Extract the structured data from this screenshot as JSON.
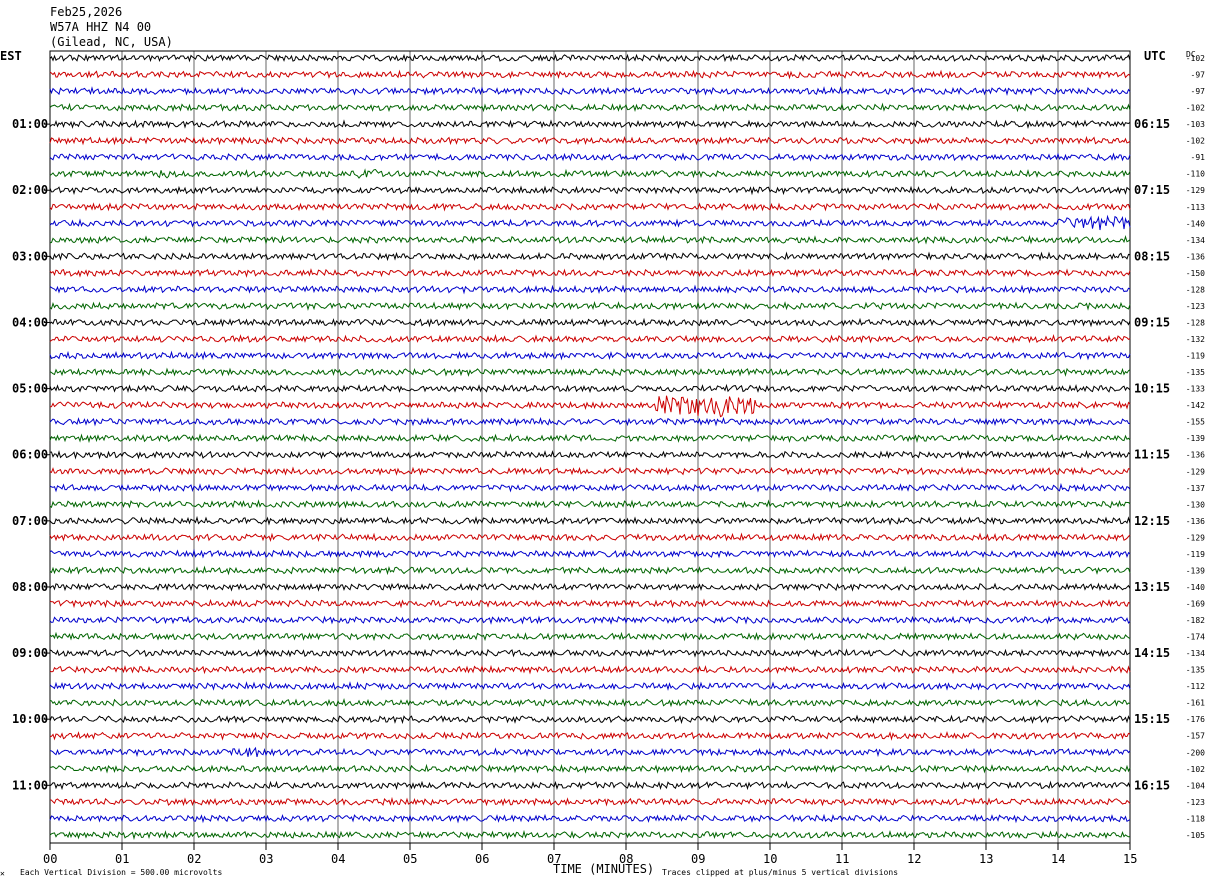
{
  "header": {
    "date": "Feb25,2026",
    "station": "W57A HHZ N4 00",
    "location": "(Gilead, NC, USA)"
  },
  "left_zone": "EST",
  "right_zone": "UTC",
  "dc_label": "DC",
  "footer": {
    "scale": "Each Vertical Division =  500.00 microvolts",
    "clip": "Traces clipped at plus/minus 5 vertical divisions"
  },
  "colors": {
    "trace_cycle": [
      "#000000",
      "#cc0000",
      "#0000cc",
      "#006400"
    ],
    "grid": "#000000"
  },
  "chart_data": {
    "type": "line",
    "title": "W57A HHZ N4 00",
    "xlabel": "TIME (MINUTES)",
    "x_ticks": [
      "00",
      "01",
      "02",
      "03",
      "04",
      "05",
      "06",
      "07",
      "08",
      "09",
      "10",
      "11",
      "12",
      "13",
      "14",
      "15"
    ],
    "xlim": [
      0,
      15
    ],
    "left_hour_labels": [
      "01:00",
      "02:00",
      "03:00",
      "04:00",
      "05:00",
      "06:00",
      "07:00",
      "08:00",
      "09:00",
      "10:00",
      "11:00"
    ],
    "right_hour_labels": [
      "06:15",
      "07:15",
      "08:15",
      "09:15",
      "10:15",
      "11:15",
      "12:15",
      "13:15",
      "14:15",
      "15:15",
      "16:15"
    ],
    "trace_count": 48,
    "dc_offsets": [
      -102,
      -97,
      -97,
      -102,
      -103,
      -102,
      -91,
      -110,
      -129,
      -113,
      -140,
      -134,
      -136,
      -150,
      -128,
      -123,
      -128,
      -132,
      -119,
      -135,
      -133,
      -142,
      -155,
      -139,
      -136,
      -129,
      -137,
      -130,
      -136,
      -129,
      -119,
      -139,
      -140,
      -169,
      -182,
      -174,
      -134,
      -135,
      -112,
      -161,
      -176,
      -157,
      -200,
      -102,
      -104,
      -123,
      -118,
      -105
    ],
    "events": [
      {
        "trace": 7,
        "start_min": 1.5,
        "end_min": 1.7,
        "amplitude": "small"
      },
      {
        "trace": 7,
        "start_min": 4.2,
        "end_min": 4.6,
        "amplitude": "small"
      },
      {
        "trace": 10,
        "start_min": 14.0,
        "end_min": 15.0,
        "amplitude": "medium"
      },
      {
        "trace": 21,
        "start_min": 8.4,
        "end_min": 9.8,
        "amplitude": "large"
      },
      {
        "trace": 42,
        "start_min": 2.4,
        "end_min": 3.0,
        "amplitude": "small"
      }
    ]
  }
}
